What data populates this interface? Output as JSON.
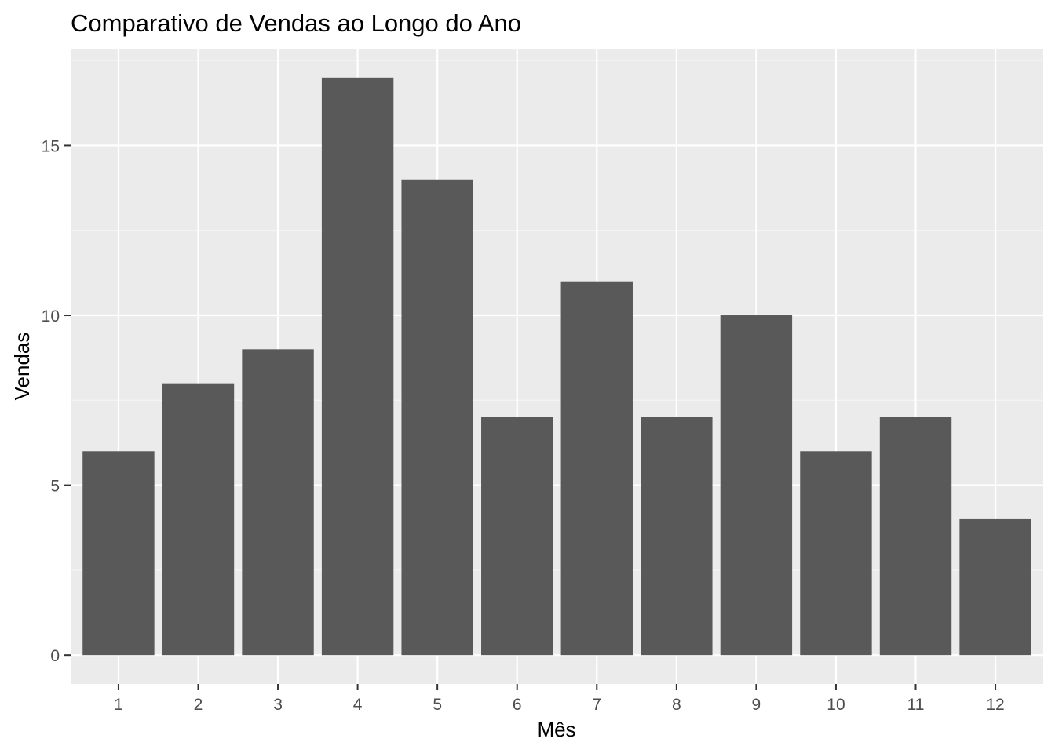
{
  "chart_data": {
    "type": "bar",
    "title": "Comparativo de Vendas ao Longo do Ano",
    "xlabel": "Mês",
    "ylabel": "Vendas",
    "categories": [
      "1",
      "2",
      "3",
      "4",
      "5",
      "6",
      "7",
      "8",
      "9",
      "10",
      "11",
      "12"
    ],
    "values": [
      6,
      8,
      9,
      17,
      14,
      7,
      11,
      7,
      10,
      6,
      7,
      4
    ],
    "ylim": [
      -0.85,
      17.85
    ],
    "yticks": [
      0,
      5,
      10,
      15
    ],
    "grid": true,
    "colors": {
      "bar": "#595959",
      "panel": "#ebebeb",
      "grid_major": "#ffffff",
      "grid_minor": "#f5f5f5",
      "tick": "#333333"
    }
  }
}
